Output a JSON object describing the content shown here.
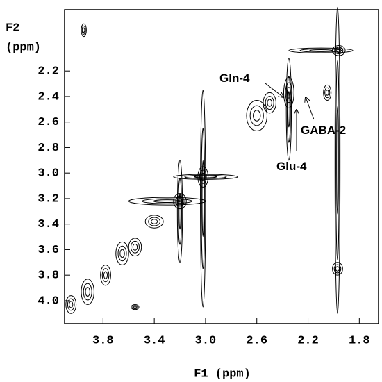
{
  "chart_data": {
    "type": "contour",
    "xlabel": "F1 (ppm)",
    "ylabel": [
      "F2",
      "(ppm)"
    ],
    "xlim": [
      4.1,
      1.65
    ],
    "ylim": [
      1.72,
      4.18
    ],
    "xticks": [
      3.8,
      3.4,
      {
        "value": 3,
        "label": "3.0"
      },
      2.6,
      2.2,
      1.8
    ],
    "yticks": [
      2.2,
      2.4,
      2.6,
      2.8,
      {
        "value": 3,
        "label": "3.0"
      },
      3.2,
      3.4,
      3.6,
      3.8,
      {
        "value": 4,
        "label": "4.0"
      }
    ],
    "color": "#000000",
    "peaks": {
      "x": [
        4.05,
        3.92,
        3.78,
        3.65,
        3.55,
        3.4,
        3.2,
        3.02,
        2.6,
        2.35,
        1.96,
        3.02,
        1.97,
        3.2,
        2.35,
        2.1,
        3.0,
        3.3,
        3.95,
        1.97,
        3.55,
        2.5,
        2.05
      ],
      "y": [
        4.03,
        3.93,
        3.8,
        3.63,
        3.58,
        3.38,
        3.22,
        3.03,
        2.55,
        2.37,
        2.04,
        3.2,
        2.9,
        3.3,
        2.5,
        2.04,
        3.03,
        3.22,
        1.88,
        3.75,
        4.05,
        2.45,
        2.37
      ],
      "rx": [
        0.04,
        0.05,
        0.04,
        0.05,
        0.05,
        0.07,
        0.05,
        0.04,
        0.08,
        0.04,
        0.05,
        0.02,
        0.02,
        0.02,
        0.02,
        0.25,
        0.25,
        0.3,
        0.02,
        0.04,
        0.03,
        0.05,
        0.03
      ],
      "ry": [
        0.07,
        0.1,
        0.08,
        0.09,
        0.07,
        0.05,
        0.06,
        0.08,
        0.12,
        0.12,
        0.04,
        0.85,
        1.2,
        0.4,
        0.4,
        0.02,
        0.02,
        0.03,
        0.05,
        0.05,
        0.02,
        0.08,
        0.06
      ]
    },
    "annotations": [
      "Gln-4",
      "Glu-4",
      "GABA-2"
    ]
  }
}
